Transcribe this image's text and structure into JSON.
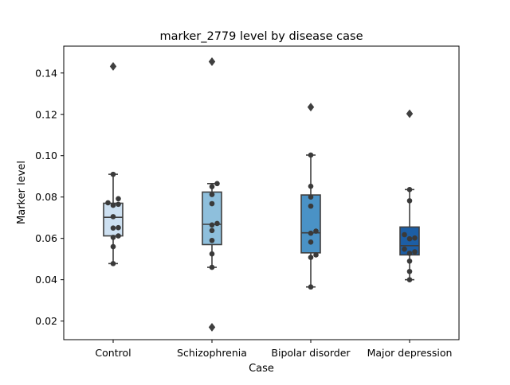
{
  "chart_data": {
    "type": "box",
    "title": "marker_2779 level by disease case",
    "xlabel": "Case",
    "ylabel": "Marker level",
    "ylim": [
      0.011,
      0.153
    ],
    "yticks": [
      0.02,
      0.04,
      0.06,
      0.08,
      0.1,
      0.12,
      0.14
    ],
    "ytick_labels": [
      "0.02",
      "0.04",
      "0.06",
      "0.08",
      "0.10",
      "0.12",
      "0.14"
    ],
    "grid": false,
    "categories": [
      "Control",
      "Schizophrenia",
      "Bipolar disorder",
      "Major depression"
    ],
    "colors": [
      "#cde0f1",
      "#8ebfdc",
      "#4a92c6",
      "#1c5ea5"
    ],
    "boxes": [
      {
        "category": "Control",
        "q1": 0.0612,
        "median": 0.0702,
        "q3": 0.077,
        "whisker_low": 0.0478,
        "whisker_high": 0.091,
        "outliers": [
          0.1432
        ],
        "points": [
          0.091,
          0.0792,
          0.0772,
          0.0765,
          0.076,
          0.0705,
          0.0652,
          0.065,
          0.0612,
          0.0605,
          0.056,
          0.0478
        ]
      },
      {
        "category": "Schizophrenia",
        "q1": 0.057,
        "median": 0.0668,
        "q3": 0.0824,
        "whisker_low": 0.046,
        "whisker_high": 0.0865,
        "outliers": [
          0.1455,
          0.017
        ],
        "points": [
          0.0865,
          0.085,
          0.0812,
          0.0768,
          0.0672,
          0.0665,
          0.0638,
          0.059,
          0.0525,
          0.046
        ]
      },
      {
        "category": "Bipolar disorder",
        "q1": 0.053,
        "median": 0.0627,
        "q3": 0.081,
        "whisker_low": 0.0365,
        "whisker_high": 0.1003,
        "outliers": [
          0.1235
        ],
        "points": [
          0.1003,
          0.0852,
          0.08,
          0.0756,
          0.0635,
          0.0625,
          0.0582,
          0.052,
          0.0508,
          0.0365
        ]
      },
      {
        "category": "Major depression",
        "q1": 0.052,
        "median": 0.0565,
        "q3": 0.0655,
        "whisker_low": 0.04,
        "whisker_high": 0.0836,
        "outliers": [
          0.1203
        ],
        "points": [
          0.0836,
          0.0782,
          0.0618,
          0.0602,
          0.0598,
          0.0548,
          0.0535,
          0.0528,
          0.049,
          0.044,
          0.04
        ]
      }
    ]
  }
}
